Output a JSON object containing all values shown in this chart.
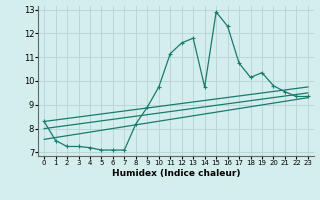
{
  "xlabel": "Humidex (Indice chaleur)",
  "background_color": "#d4eeee",
  "grid_color": "#b8d8d8",
  "line_color": "#1a7a6e",
  "xlim": [
    -0.5,
    23.5
  ],
  "ylim": [
    6.85,
    13.15
  ],
  "yticks": [
    7,
    8,
    9,
    10,
    11,
    12,
    13
  ],
  "xticks": [
    0,
    1,
    2,
    3,
    4,
    5,
    6,
    7,
    8,
    9,
    10,
    11,
    12,
    13,
    14,
    15,
    16,
    17,
    18,
    19,
    20,
    21,
    22,
    23
  ],
  "series1_x": [
    0,
    1,
    2,
    3,
    4,
    5,
    6,
    7,
    8,
    9,
    10,
    11,
    12,
    13,
    14,
    15,
    16,
    17,
    18,
    19,
    20,
    21,
    22,
    23
  ],
  "series1_y": [
    8.3,
    7.5,
    7.25,
    7.25,
    7.2,
    7.1,
    7.1,
    7.1,
    8.2,
    8.9,
    9.75,
    11.15,
    11.6,
    11.8,
    9.75,
    12.9,
    12.3,
    10.75,
    10.15,
    10.35,
    9.8,
    9.55,
    9.35,
    9.35
  ],
  "series2_x": [
    0,
    23
  ],
  "series2_y": [
    8.0,
    9.5
  ],
  "series3_x": [
    0,
    23
  ],
  "series3_y": [
    8.3,
    9.75
  ],
  "series4_x": [
    0,
    23
  ],
  "series4_y": [
    7.55,
    9.3
  ]
}
